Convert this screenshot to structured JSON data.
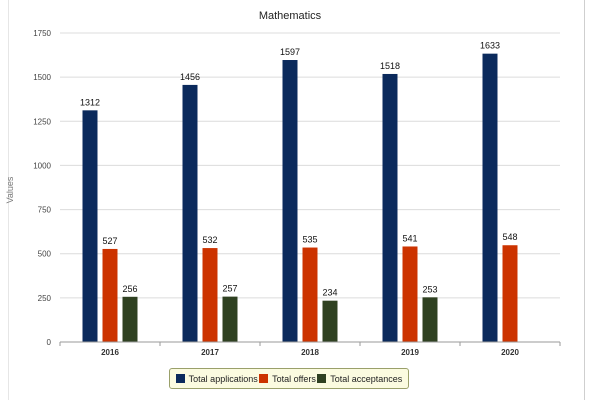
{
  "chart_data": {
    "type": "bar",
    "title": "Mathematics",
    "xlabel": "",
    "ylabel": "Values",
    "ylim": [
      0,
      1750
    ],
    "yticks": [
      0,
      250,
      500,
      750,
      1000,
      1250,
      1500,
      1750
    ],
    "grid": true,
    "legend_position": "bottom-center",
    "categories": [
      "2016",
      "2017",
      "2018",
      "2019",
      "2020"
    ],
    "series": [
      {
        "name": "Total applications",
        "color": "#0b2a5c",
        "values": [
          1312,
          1456,
          1597,
          1518,
          1633
        ]
      },
      {
        "name": "Total offers",
        "color": "#cc3300",
        "values": [
          527,
          532,
          535,
          541,
          548
        ]
      },
      {
        "name": "Total acceptances",
        "color": "#2f4121",
        "values": [
          256,
          257,
          234,
          253,
          null
        ]
      }
    ]
  }
}
